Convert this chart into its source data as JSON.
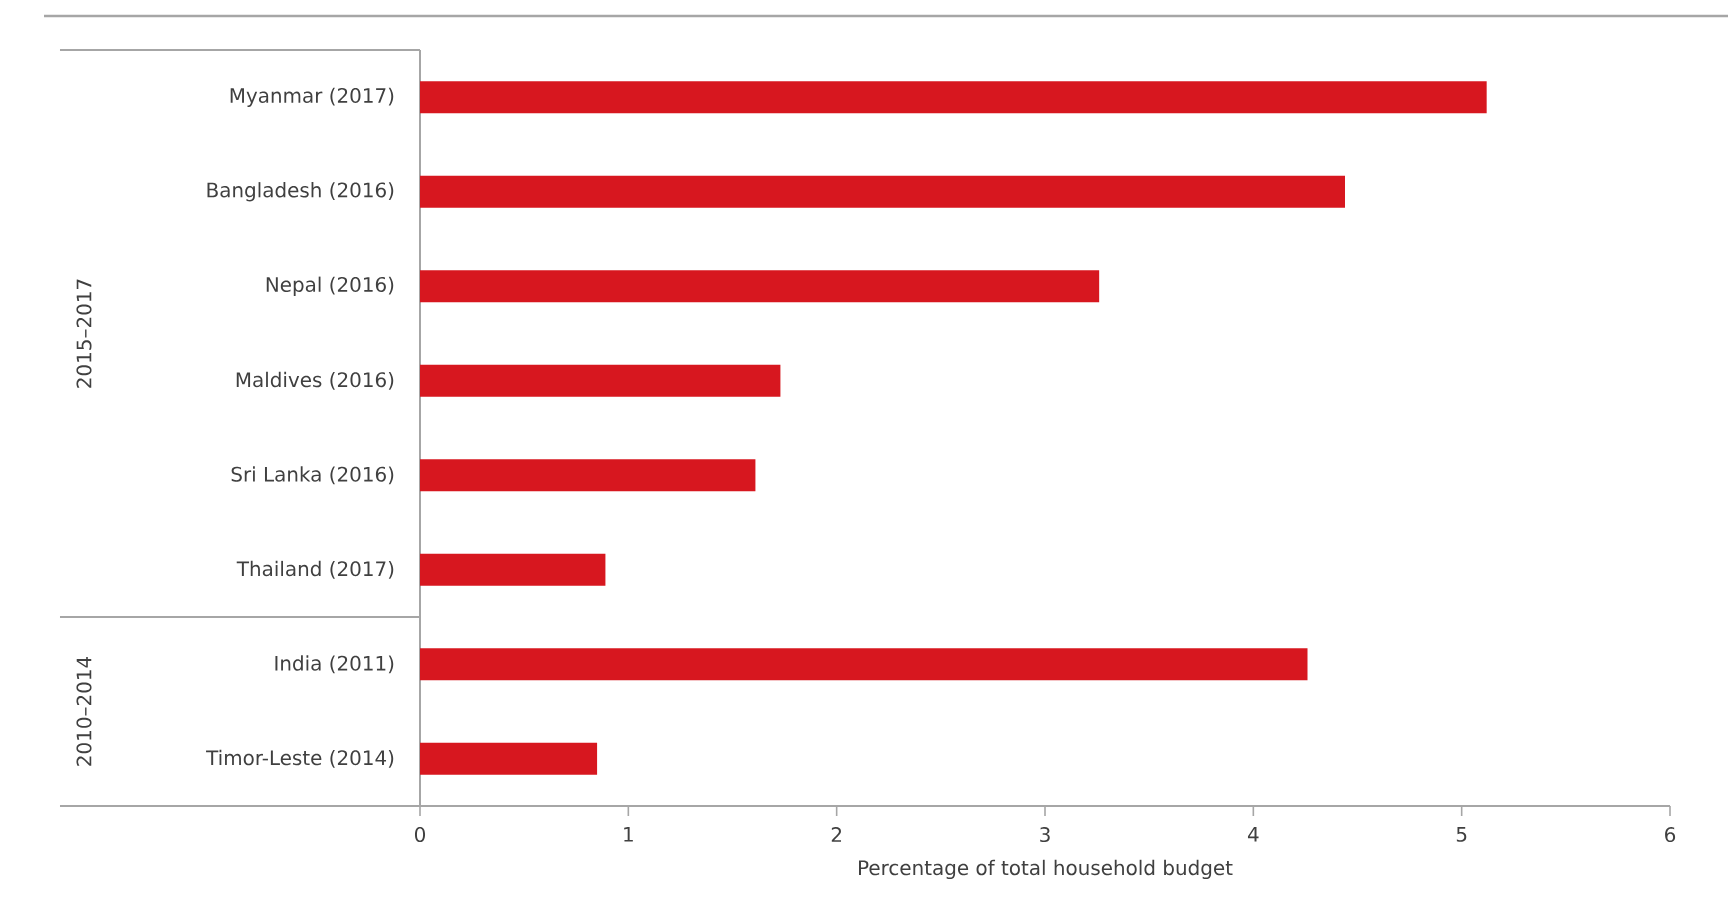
{
  "chart_data": {
    "type": "bar",
    "orientation": "horizontal",
    "xlabel": "Percentage of total household budget",
    "categories": [
      "Myanmar (2017)",
      "Bangladesh (2016)",
      "Nepal (2016)",
      "Maldives (2016)",
      "Sri Lanka (2016)",
      "Thailand (2017)",
      "India (2011)",
      "Timor-Leste (2014)"
    ],
    "values": [
      5.12,
      4.44,
      3.26,
      1.73,
      1.61,
      0.89,
      4.26,
      0.85
    ],
    "color": "#d7171f",
    "xlim": [
      0,
      6
    ],
    "xticks": [
      0,
      1,
      2,
      3,
      4,
      5,
      6
    ],
    "annotations": [
      "2015–2017",
      "2010–2014"
    ]
  }
}
